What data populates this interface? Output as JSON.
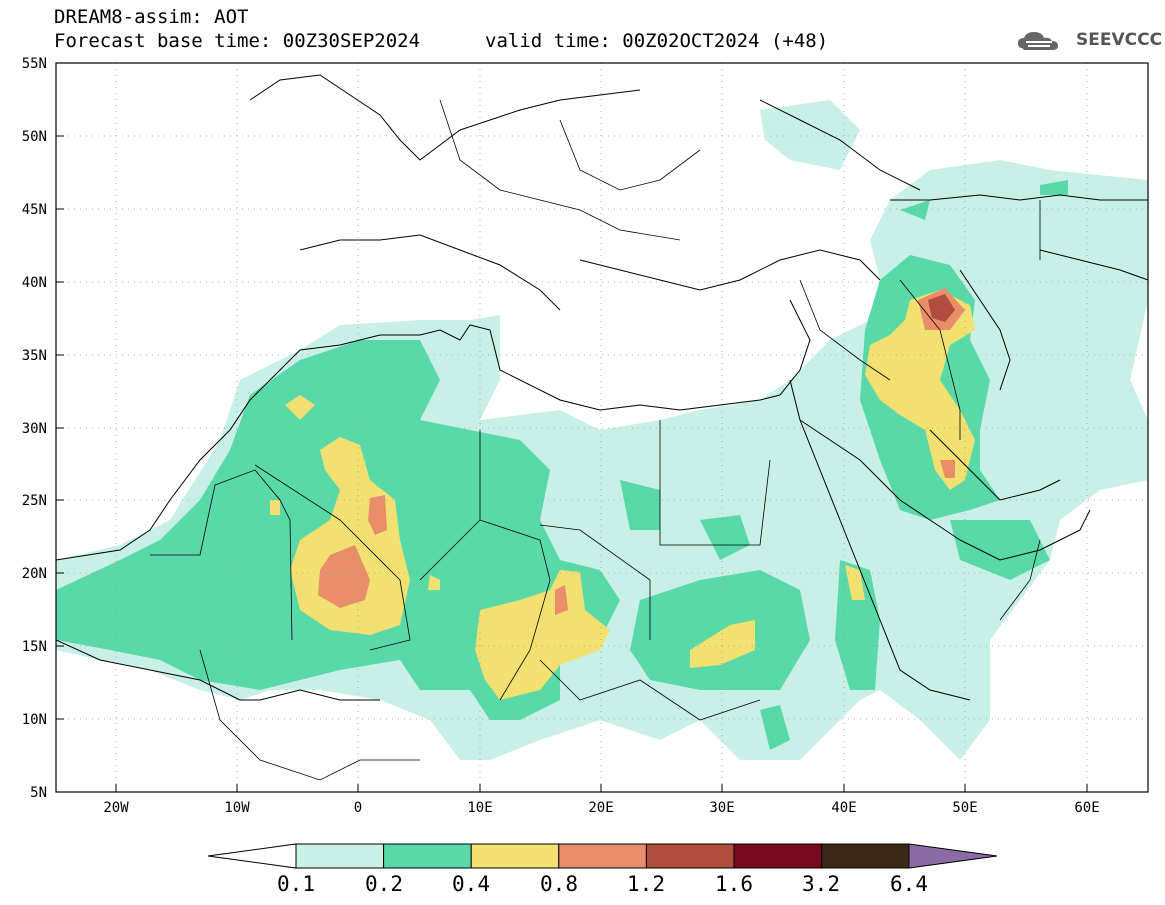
{
  "title": {
    "line1": "DREAM8-assim: AOT",
    "line2": "Forecast base time: 00Z30SEP2024",
    "valid": "valid time: 00Z02OCT2024 (+48)"
  },
  "logo": {
    "text": "SEEVCCC",
    "icon": "cloud-logo-icon"
  },
  "axes": {
    "x_ticks": [
      "20W",
      "10W",
      "0",
      "10E",
      "20E",
      "30E",
      "40E",
      "50E",
      "60E"
    ],
    "y_ticks": [
      "55N",
      "50N",
      "45N",
      "40N",
      "35N",
      "30N",
      "25N",
      "20N",
      "15N",
      "10N",
      "5N"
    ],
    "lon_range": [
      -25,
      65
    ],
    "lat_range": [
      5,
      55
    ]
  },
  "colorbar": {
    "labels": [
      "0.1",
      "0.2",
      "0.4",
      "0.8",
      "1.2",
      "1.6",
      "3.2",
      "6.4"
    ],
    "colors": [
      "#c8f0e8",
      "#5ad9a8",
      "#f2e071",
      "#e88e68",
      "#b04e3e",
      "#7a0a20",
      "#3a2716",
      "#8c6aa6"
    ]
  }
}
